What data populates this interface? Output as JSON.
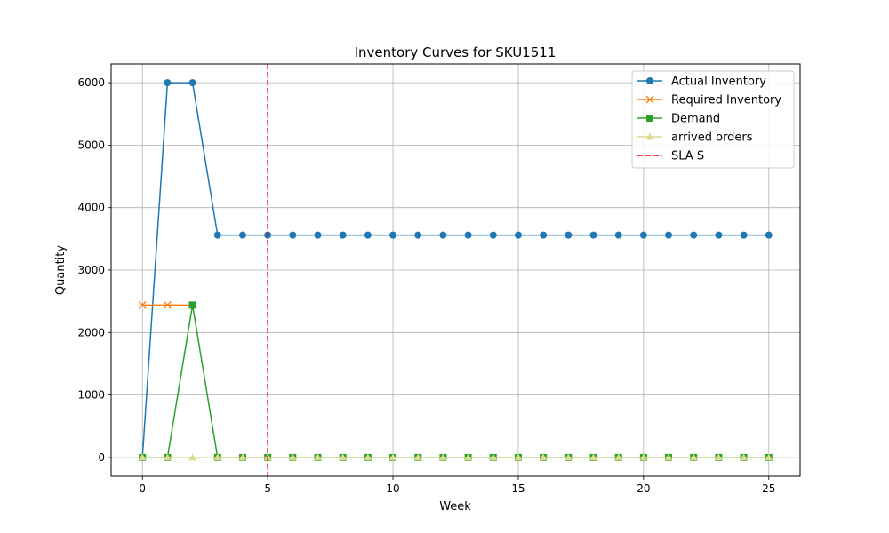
{
  "chart_data": {
    "type": "line",
    "title": "Inventory Curves for SKU1511",
    "xlabel": "Week",
    "ylabel": "Quantity",
    "xlim": [
      -1.25,
      26.25
    ],
    "ylim": [
      -300,
      6300
    ],
    "xticks": [
      0,
      5,
      10,
      15,
      20,
      25
    ],
    "yticks": [
      0,
      1000,
      2000,
      3000,
      4000,
      5000,
      6000
    ],
    "grid": true,
    "legend_position": "top-right",
    "series": [
      {
        "name": "Actual Inventory",
        "color": "#1f77b4",
        "marker": "circle",
        "x": [
          0,
          1,
          2,
          3,
          4,
          5,
          6,
          7,
          8,
          9,
          10,
          11,
          12,
          13,
          14,
          15,
          16,
          17,
          18,
          19,
          20,
          21,
          22,
          23,
          24,
          25
        ],
        "values": [
          0,
          6000,
          6000,
          3560,
          3560,
          3560,
          3560,
          3560,
          3560,
          3560,
          3560,
          3560,
          3560,
          3560,
          3560,
          3560,
          3560,
          3560,
          3560,
          3560,
          3560,
          3560,
          3560,
          3560,
          3560,
          3560
        ]
      },
      {
        "name": "Required Inventory",
        "color": "#ff7f0e",
        "marker": "x",
        "x": [
          0,
          1,
          2
        ],
        "values": [
          2440,
          2440,
          2440
        ]
      },
      {
        "name": "Demand",
        "color": "#2ca02c",
        "marker": "square",
        "x": [
          0,
          1,
          2,
          3,
          4,
          5,
          6,
          7,
          8,
          9,
          10,
          11,
          12,
          13,
          14,
          15,
          16,
          17,
          18,
          19,
          20,
          21,
          22,
          23,
          24,
          25
        ],
        "values": [
          0,
          0,
          2440,
          0,
          0,
          0,
          0,
          0,
          0,
          0,
          0,
          0,
          0,
          0,
          0,
          0,
          0,
          0,
          0,
          0,
          0,
          0,
          0,
          0,
          0,
          0
        ]
      },
      {
        "name": "arrived orders",
        "color": "#dbdb8d",
        "marker": "triangle",
        "x": [
          0,
          1,
          2,
          3,
          4,
          5,
          6,
          7,
          8,
          9,
          10,
          11,
          12,
          13,
          14,
          15,
          16,
          17,
          18,
          19,
          20,
          21,
          22,
          23,
          24,
          25
        ],
        "values": [
          0,
          0,
          0,
          0,
          0,
          0,
          0,
          0,
          0,
          0,
          0,
          0,
          0,
          0,
          0,
          0,
          0,
          0,
          0,
          0,
          0,
          0,
          0,
          0,
          0,
          0
        ]
      }
    ],
    "vlines": [
      {
        "name": "SLA S",
        "x": 5,
        "color": "#ff0000",
        "style": "dashed"
      }
    ]
  }
}
